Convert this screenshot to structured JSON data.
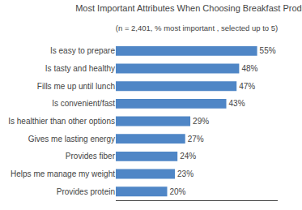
{
  "chart_data": {
    "type": "bar",
    "orientation": "horizontal",
    "title": "Most Important Attributes When Choosing Breakfast Products",
    "subtitle": "(n = 2,401, % most important , selected up to 5)",
    "categories": [
      "Is easy to prepare",
      "Is tasty and healthy",
      "Fills me up until lunch",
      "Is convenient/fast",
      "Is healthier than other options",
      "Gives me lasting energy",
      "Provides fiber",
      "Helps me manage my weight",
      "Provides protein"
    ],
    "values": [
      55,
      48,
      47,
      43,
      29,
      27,
      24,
      23,
      20
    ],
    "value_labels": [
      "55%",
      "48%",
      "47%",
      "43%",
      "29%",
      "27%",
      "24%",
      "23%",
      "20%"
    ],
    "data_labels": true,
    "color": "#4F86C6",
    "xlim": [
      0,
      63
    ],
    "tick_labels": "y",
    "grid": false
  }
}
